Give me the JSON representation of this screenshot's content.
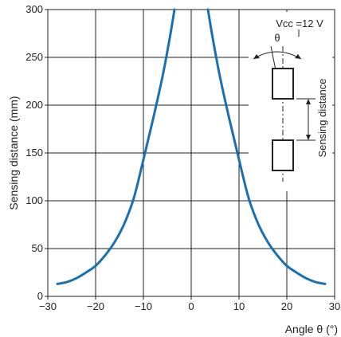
{
  "chart_data": {
    "type": "line",
    "xlabel": "Angle θ (°)",
    "ylabel": "Sensing distance (mm)",
    "xlim": [
      -30,
      30
    ],
    "ylim": [
      0,
      300
    ],
    "grid": true,
    "x_ticks": [
      "−30",
      "−20",
      "−10",
      "0",
      "10",
      "20",
      "30"
    ],
    "y_ticks": [
      "0",
      "50",
      "100",
      "150",
      "200",
      "250",
      "300"
    ],
    "series": [
      {
        "color": "#1a6fb0",
        "points": [
          [
            -28,
            13
          ],
          [
            -26,
            15
          ],
          [
            -24,
            19
          ],
          [
            -22,
            25
          ],
          [
            -20,
            32
          ],
          [
            -18,
            43
          ],
          [
            -16,
            57
          ],
          [
            -14,
            76
          ],
          [
            -12,
            103
          ],
          [
            -10,
            143
          ],
          [
            -8,
            185
          ],
          [
            -6,
            230
          ],
          [
            -4.5,
            270
          ],
          [
            -3.5,
            300
          ]
        ]
      },
      {
        "color": "#1a6fb0",
        "points": [
          [
            3.5,
            300
          ],
          [
            4.5,
            270
          ],
          [
            6,
            230
          ],
          [
            8,
            185
          ],
          [
            10,
            143
          ],
          [
            12,
            103
          ],
          [
            14,
            76
          ],
          [
            16,
            57
          ],
          [
            18,
            43
          ],
          [
            20,
            32
          ],
          [
            22,
            25
          ],
          [
            24,
            19
          ],
          [
            26,
            15
          ],
          [
            28,
            13
          ]
        ]
      }
    ],
    "inset": {
      "vcc_label": "Vcc =12 V",
      "theta_label": "θ",
      "distance_label": "Sensing distance"
    }
  }
}
